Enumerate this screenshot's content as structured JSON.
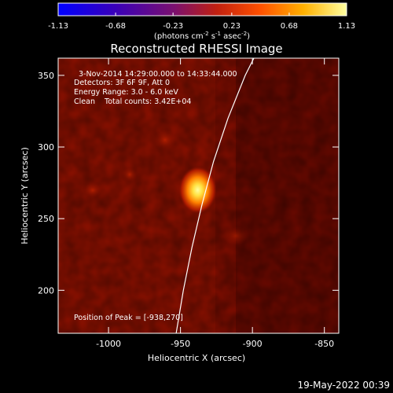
{
  "colorbar": {
    "ticks": [
      "-1.13",
      "-0.68",
      "-0.23",
      "0.23",
      "0.68",
      "1.13"
    ],
    "tick_values": [
      -1.13,
      -0.68,
      -0.23,
      0.23,
      0.68,
      1.13
    ],
    "range": [
      -1.13,
      1.13
    ],
    "label_pre": "(photons cm",
    "label_exp1": "-2",
    "label_mid": " s",
    "label_exp2": "-1",
    "label_mid2": " asec",
    "label_exp3": "-2",
    "label_post": ")"
  },
  "title": "Reconstructed RHESSI Image",
  "annotations": {
    "time": "3-Nov-2014 14:29:00.000 to 14:33:44.000",
    "detectors": "Detectors: 3F 6F 9F, Att 0",
    "energy": "Energy Range: 3.0 - 6.0 keV",
    "clean": "Clean    Total counts: 3.42E+04",
    "peak": "Position of Peak = [-938,270]"
  },
  "footer_date": "19-May-2022 00:39",
  "chart_data": {
    "type": "heatmap",
    "title": "Reconstructed RHESSI Image",
    "xlabel": "Heliocentric X (arcsec)",
    "ylabel": "Heliocentric Y (arcsec)",
    "xlim": [
      -1035,
      -840
    ],
    "ylim": [
      170,
      362
    ],
    "x_ticks": [
      -1000,
      -950,
      -900,
      -850
    ],
    "x_tick_labels": [
      "-1000",
      "-950",
      "-900",
      "-850"
    ],
    "y_ticks": [
      200,
      250,
      300,
      350
    ],
    "y_tick_labels": [
      "200",
      "250",
      "300",
      "350"
    ],
    "peak_position": [
      -938,
      270
    ],
    "limb_curve": [
      [
        -953,
        170
      ],
      [
        -948,
        200
      ],
      [
        -942,
        230
      ],
      [
        -935,
        260
      ],
      [
        -927,
        290
      ],
      [
        -917,
        320
      ],
      [
        -905,
        350
      ],
      [
        -899,
        362
      ]
    ],
    "colormap_range": [
      -1.13,
      1.13
    ],
    "colors": {
      "background": "#000000",
      "map_base": "#7a0d00",
      "peak": "#ffff80",
      "limb": "#ffffff"
    }
  }
}
